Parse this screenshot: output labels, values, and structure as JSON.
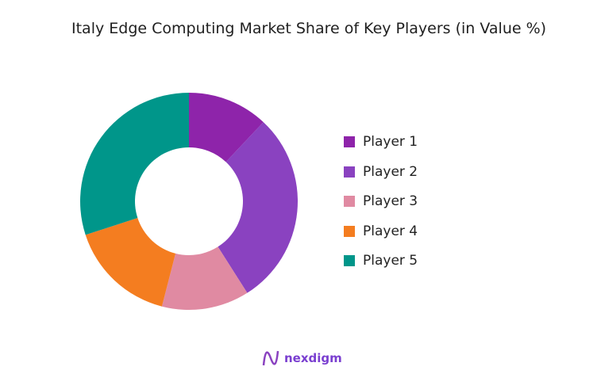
{
  "chart_data": {
    "type": "pie",
    "donut": true,
    "title": "Italy Edge Computing Market Share of Key Players (in Value %)",
    "categories": [
      "Player 1",
      "Player 2",
      "Player 3",
      "Player 4",
      "Player 5"
    ],
    "values": [
      12,
      29,
      13,
      16,
      30
    ],
    "colors": [
      "#8e24aa",
      "#8a42c0",
      "#e08aa2",
      "#f47d20",
      "#00968a"
    ],
    "legend": "right"
  },
  "logo": {
    "text": "nexdigm"
  }
}
